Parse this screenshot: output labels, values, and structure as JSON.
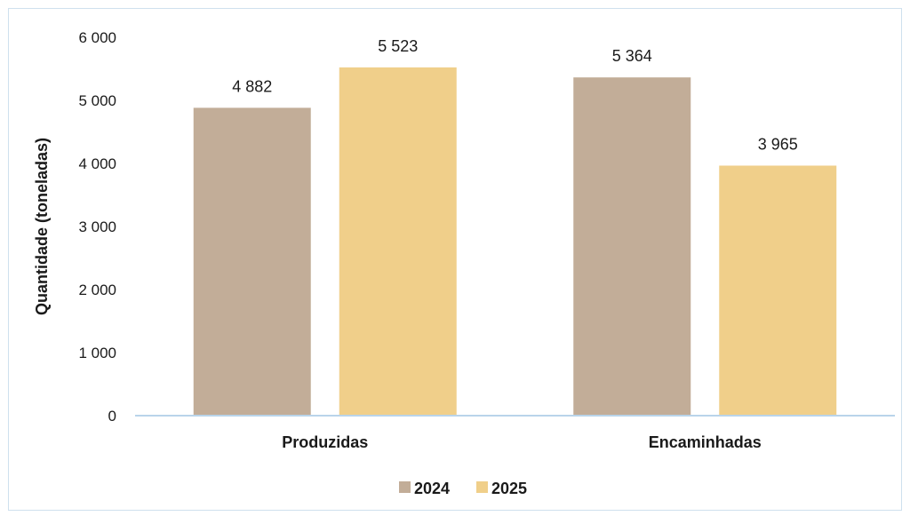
{
  "chart_data": {
    "type": "bar",
    "categories": [
      "Produzidas",
      "Encaminhadas"
    ],
    "series": [
      {
        "name": "2024",
        "values": [
          4882,
          5364
        ],
        "labels": [
          "4 882",
          "5 364"
        ],
        "color": "#c2ad98"
      },
      {
        "name": "2025",
        "values": [
          5523,
          3965
        ],
        "labels": [
          "5 523",
          "3 965"
        ],
        "color": "#f0cf8a"
      }
    ],
    "ylabel": "Quantidade (toneladas)",
    "ylim": [
      0,
      6000
    ],
    "yticks": [
      0,
      1000,
      2000,
      3000,
      4000,
      5000,
      6000
    ],
    "ytick_labels": [
      "0",
      "1 000",
      "2 000",
      "3 000",
      "4 000",
      "5 000",
      "6 000"
    ],
    "grid": false,
    "legend_position": "bottom",
    "axis_color": "#b9d4ea"
  }
}
